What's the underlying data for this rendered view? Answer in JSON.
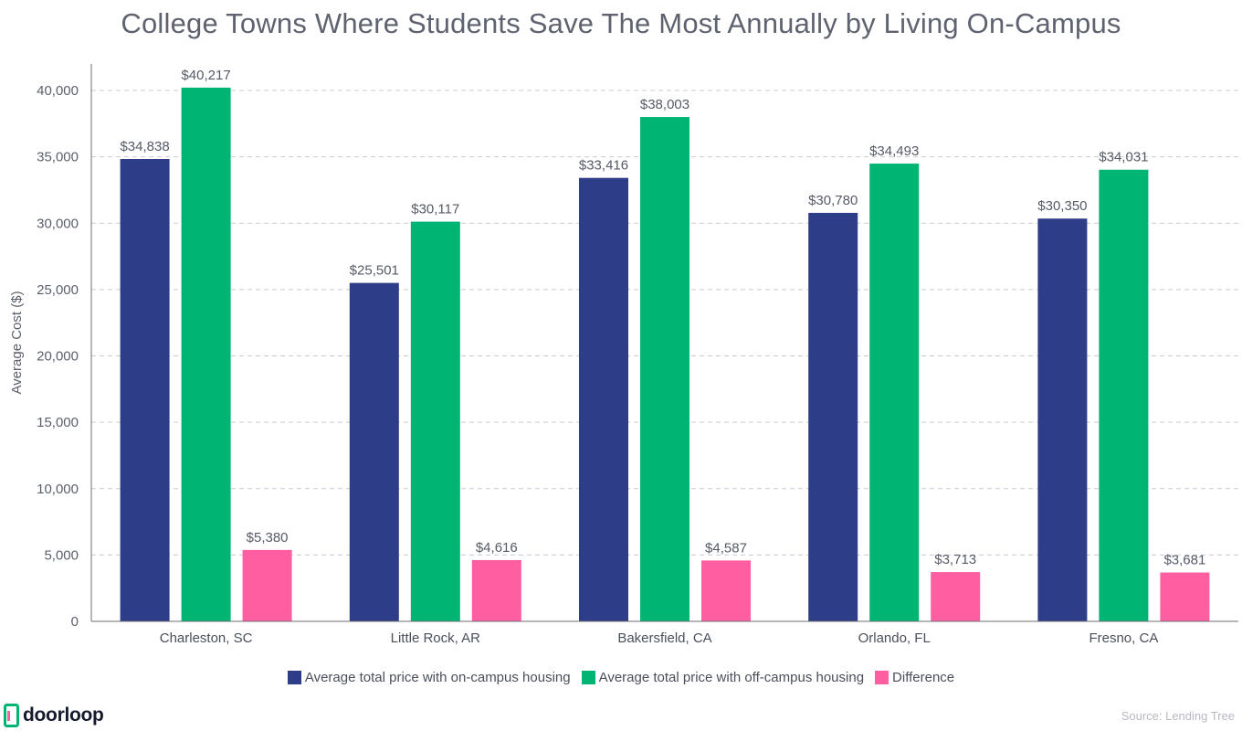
{
  "chart_data": {
    "type": "bar",
    "title": "College Towns Where Students Save The Most Annually by Living On-Campus",
    "ylabel": "Average Cost ($)",
    "xlabel": "",
    "ylim": [
      0,
      42000
    ],
    "yticks": [
      "0",
      "5,000",
      "10,000",
      "15,000",
      "20,000",
      "25,000",
      "30,000",
      "35,000",
      "40,000"
    ],
    "ytick_values": [
      0,
      5000,
      10000,
      15000,
      20000,
      25000,
      30000,
      35000,
      40000
    ],
    "grid": true,
    "legend_position": "bottom",
    "categories": [
      "Charleston, SC",
      "Little Rock, AR",
      "Bakersfield, CA",
      "Orlando, FL",
      "Fresno, CA"
    ],
    "series": [
      {
        "name": "Average total price with on-campus housing",
        "color": "#2e3d87",
        "values": [
          34838,
          25501,
          33416,
          30780,
          30350
        ],
        "labels": [
          "$34,838",
          "$25,501",
          "$33,416",
          "$30,780",
          "$30,350"
        ]
      },
      {
        "name": "Average total price with off-campus housing",
        "color": "#00b574",
        "values": [
          40217,
          30117,
          38003,
          34493,
          34031
        ],
        "labels": [
          "$40,217",
          "$30,117",
          "$38,003",
          "$34,493",
          "$34,031"
        ]
      },
      {
        "name": "Difference",
        "color": "#ff5fa0",
        "values": [
          5380,
          4616,
          4587,
          3713,
          3681
        ],
        "labels": [
          "$5,380",
          "$4,616",
          "$4,587",
          "$3,713",
          "$3,681"
        ]
      }
    ]
  },
  "footer": {
    "brand": "doorloop",
    "source": "Source: Lending Tree"
  },
  "colors": {
    "brand_icon": "#00b574",
    "brand_icon_accent": "#ff5fa0"
  },
  "icons": {
    "brand_logo": "door-icon"
  }
}
